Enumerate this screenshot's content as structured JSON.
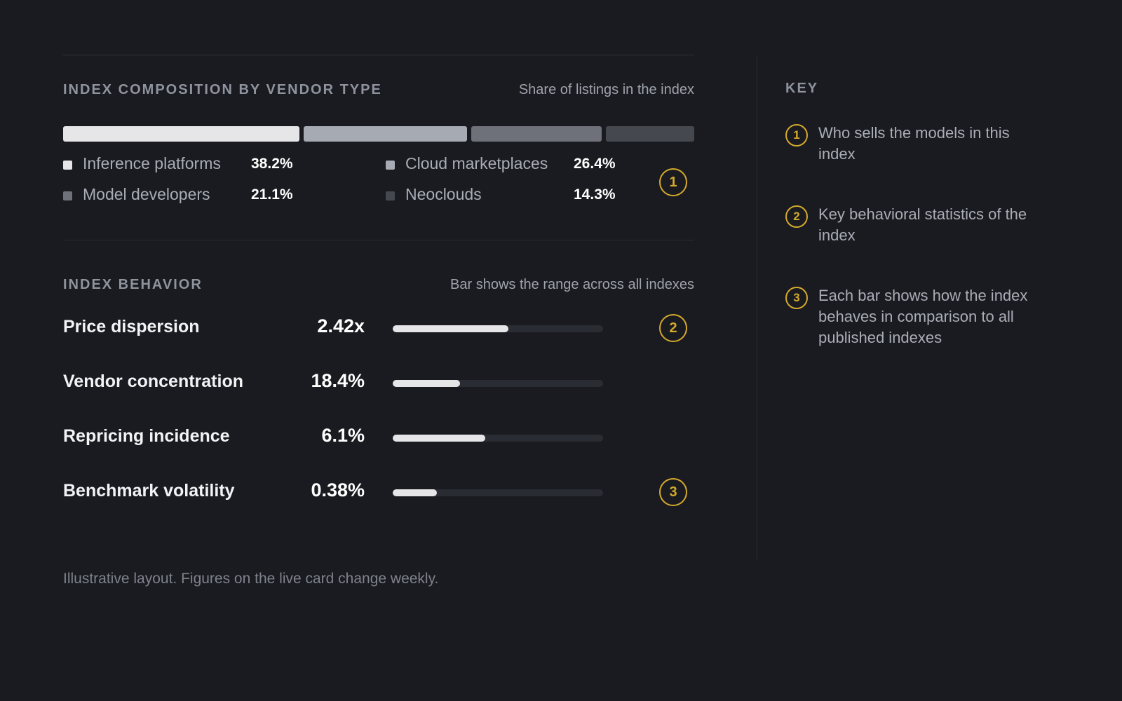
{
  "composition": {
    "title": "INDEX COMPOSITION BY VENDOR TYPE",
    "subtitle": "Share of listings in the index",
    "badge": "1",
    "segments": [
      {
        "label": "Inference platforms",
        "pct_text": "38.2%",
        "share": 38.2,
        "color": "#e6e6e8"
      },
      {
        "label": "Cloud marketplaces",
        "pct_text": "26.4%",
        "share": 26.4,
        "color": "#a6aab3"
      },
      {
        "label": "Model developers",
        "pct_text": "21.1%",
        "share": 21.1,
        "color": "#6e7179"
      },
      {
        "label": "Neoclouds",
        "pct_text": "14.3%",
        "share": 14.3,
        "color": "#464850"
      }
    ]
  },
  "behavior": {
    "title": "INDEX BEHAVIOR",
    "subtitle": "Bar shows the range across all indexes",
    "rows": [
      {
        "label": "Price dispersion",
        "value": "2.42x",
        "fill": 0.55,
        "badge": "2"
      },
      {
        "label": "Vendor concentration",
        "value": "18.4%",
        "fill": 0.32,
        "badge": ""
      },
      {
        "label": "Repricing incidence",
        "value": "6.1%",
        "fill": 0.44,
        "badge": ""
      },
      {
        "label": "Benchmark volatility",
        "value": "0.38%",
        "fill": 0.21,
        "badge": "3"
      }
    ]
  },
  "footnote": "Illustrative layout. Figures on the live card change weekly.",
  "key": {
    "title": "KEY",
    "items": [
      {
        "num": "1",
        "text": "Who sells the models in this index"
      },
      {
        "num": "2",
        "text": "Key behavioral statistics of the index"
      },
      {
        "num": "3",
        "text": "Each bar shows how the index behaves in comparison to all published indexes"
      }
    ]
  },
  "colors": {
    "accent": "#d4aa2c",
    "background": "#1a1b20"
  }
}
